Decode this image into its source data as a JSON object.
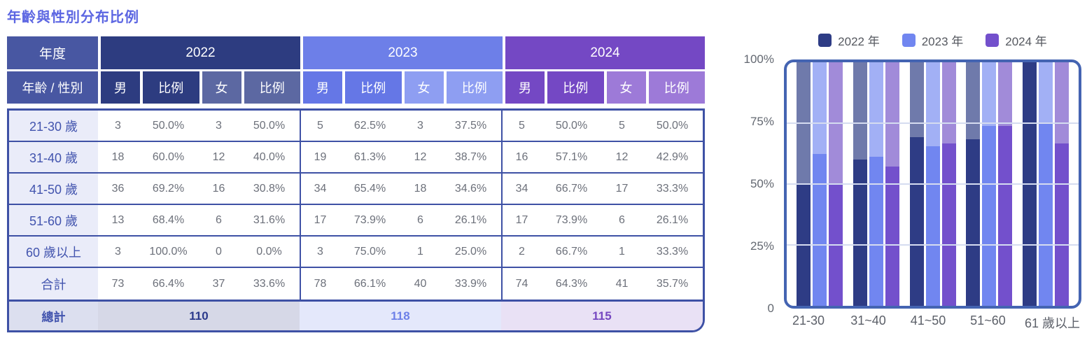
{
  "title": "年齡與性別分布比例",
  "table": {
    "corner_label": "年度",
    "row_header_label": "年齡 / 性別",
    "years": [
      "2022",
      "2023",
      "2024"
    ],
    "sub_headers": [
      "男",
      "比例",
      "女",
      "比例"
    ],
    "rows": [
      {
        "label": "21-30 歲",
        "cells": [
          "3",
          "50.0%",
          "3",
          "50.0%",
          "5",
          "62.5%",
          "3",
          "37.5%",
          "5",
          "50.0%",
          "5",
          "50.0%"
        ]
      },
      {
        "label": "31-40 歲",
        "cells": [
          "18",
          "60.0%",
          "12",
          "40.0%",
          "19",
          "61.3%",
          "12",
          "38.7%",
          "16",
          "57.1%",
          "12",
          "42.9%"
        ]
      },
      {
        "label": "41-50 歲",
        "cells": [
          "36",
          "69.2%",
          "16",
          "30.8%",
          "34",
          "65.4%",
          "18",
          "34.6%",
          "34",
          "66.7%",
          "17",
          "33.3%"
        ]
      },
      {
        "label": "51-60 歲",
        "cells": [
          "13",
          "68.4%",
          "6",
          "31.6%",
          "17",
          "73.9%",
          "6",
          "26.1%",
          "17",
          "73.9%",
          "6",
          "26.1%"
        ]
      },
      {
        "label": "60 歲以上",
        "cells": [
          "3",
          "100.0%",
          "0",
          "0.0%",
          "3",
          "75.0%",
          "1",
          "25.0%",
          "2",
          "66.7%",
          "1",
          "33.3%"
        ]
      },
      {
        "label": "合計",
        "cells": [
          "73",
          "66.4%",
          "37",
          "33.6%",
          "78",
          "66.1%",
          "40",
          "33.9%",
          "74",
          "64.3%",
          "41",
          "35.7%"
        ]
      }
    ],
    "grand_total": {
      "label": "總計",
      "values": [
        "110",
        "118",
        "115"
      ]
    }
  },
  "chart_data": {
    "type": "bar",
    "stacked": true,
    "title": "",
    "xlabel": "",
    "ylabel": "",
    "categories": [
      "21-30",
      "31~40",
      "41~50",
      "51~60",
      "61 歲以上"
    ],
    "series": [
      {
        "name": "2022 年",
        "male_pct": [
          50.0,
          60.0,
          69.2,
          68.4,
          100.0
        ],
        "female_pct": [
          50.0,
          40.0,
          30.8,
          31.6,
          0.0
        ],
        "color": "#2e3c85",
        "remainder_color": "#6f7aab"
      },
      {
        "name": "2023 年",
        "male_pct": [
          62.5,
          61.3,
          65.4,
          73.9,
          75.0
        ],
        "female_pct": [
          37.5,
          38.7,
          34.6,
          26.1,
          25.0
        ],
        "color": "#7186f0",
        "remainder_color": "#a2b0f5"
      },
      {
        "name": "2024 年",
        "male_pct": [
          50.0,
          57.1,
          66.7,
          73.9,
          66.7
        ],
        "female_pct": [
          50.0,
          42.9,
          33.3,
          26.1,
          33.3
        ],
        "color": "#7350cc",
        "remainder_color": "#a18bd9"
      }
    ],
    "y_ticks": [
      {
        "label": "100%",
        "value": 100
      },
      {
        "label": "75%",
        "value": 75
      },
      {
        "label": "50%",
        "value": 50
      },
      {
        "label": "25%",
        "value": 25
      },
      {
        "label": "0",
        "value": 0
      }
    ],
    "ylim": [
      0,
      100
    ],
    "grid": true,
    "legend_position": "top"
  },
  "colors": {
    "title_text": "#5c66e2",
    "header_blue": "#4857a2",
    "year_2022": "#2d3c80",
    "year_2023": "#6d7fe8",
    "year_2024": "#7448c4",
    "table_border": "#3e51a5",
    "chart_border": "#4464b2",
    "gridline": "#d5dcf0"
  }
}
